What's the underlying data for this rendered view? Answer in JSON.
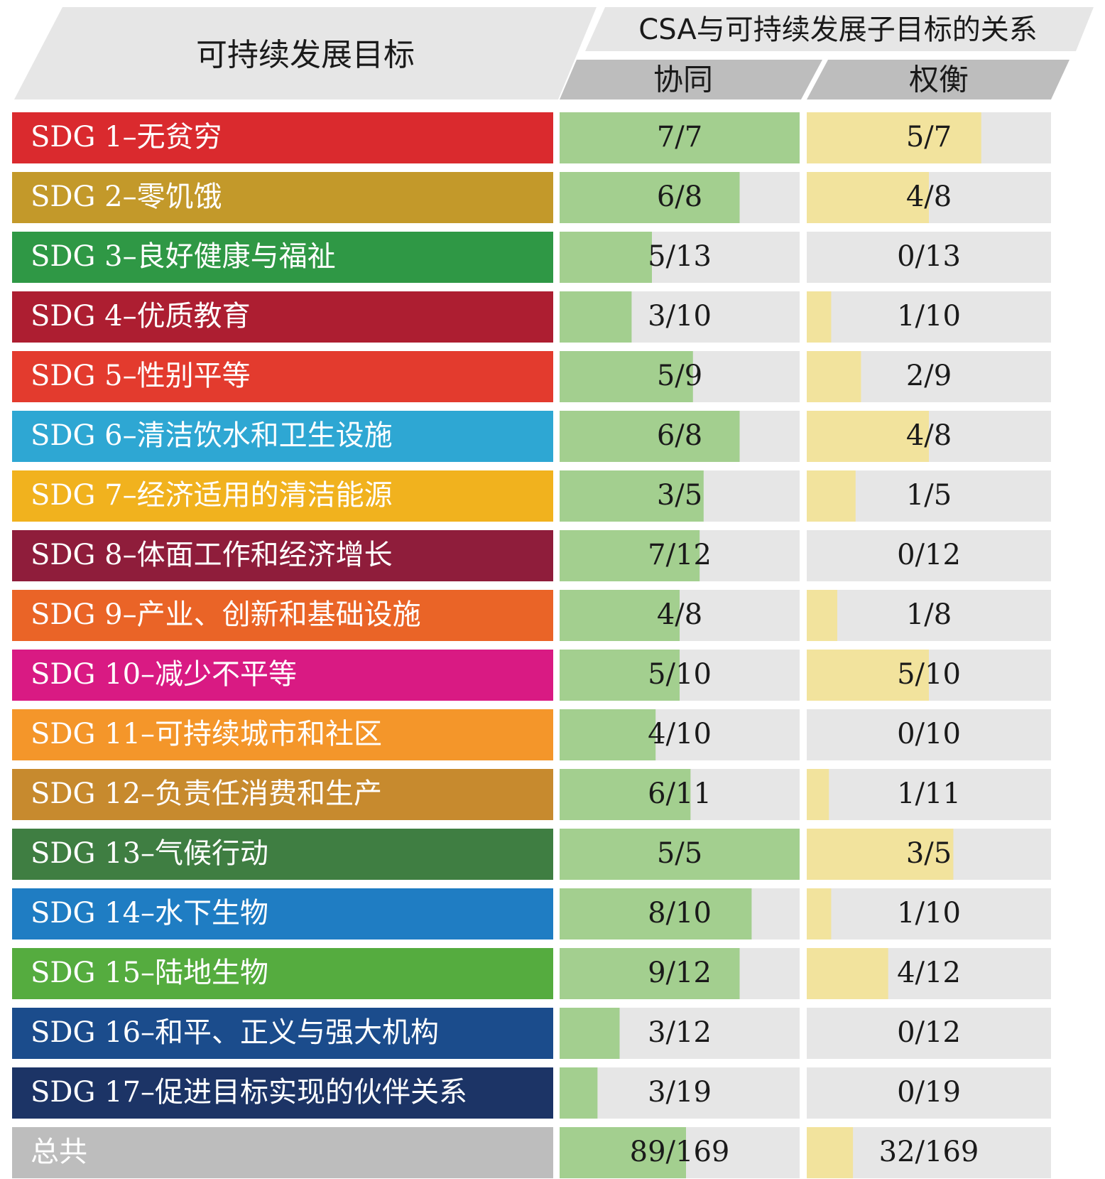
{
  "header": {
    "goal_column": "可持续发展目标",
    "relation_title": "CSA与可持续发展子目标的关系",
    "synergy_label": "协同",
    "tradeoff_label": "权衡"
  },
  "colors": {
    "synergy_bar": "#a3cf8f",
    "tradeoff_bar": "#f2e39d",
    "track": "#e6e6e6",
    "header_bg": "#e6e6e6",
    "subheader_bg": "#bdbdbd",
    "total_bg": "#bdbdbd"
  },
  "chart_data": {
    "type": "table",
    "columns": [
      "可持续发展目标",
      "协同",
      "权衡"
    ],
    "rows": [
      {
        "label": "SDG 1–无贫穷",
        "color": "#da2a2e",
        "synergy": [
          7,
          7
        ],
        "tradeoff": [
          5,
          7
        ]
      },
      {
        "label": "SDG 2–零饥饿",
        "color": "#c3992a",
        "synergy": [
          6,
          8
        ],
        "tradeoff": [
          4,
          8
        ]
      },
      {
        "label": "SDG 3–良好健康与福祉",
        "color": "#2f9845",
        "synergy": [
          5,
          13
        ],
        "tradeoff": [
          0,
          13
        ]
      },
      {
        "label": "SDG 4–优质教育",
        "color": "#ad1e31",
        "synergy": [
          3,
          10
        ],
        "tradeoff": [
          1,
          10
        ]
      },
      {
        "label": "SDG 5–性别平等",
        "color": "#e33b2e",
        "synergy": [
          5,
          9
        ],
        "tradeoff": [
          2,
          9
        ]
      },
      {
        "label": "SDG 6–清洁饮水和卫生设施",
        "color": "#2ea7d3",
        "synergy": [
          6,
          8
        ],
        "tradeoff": [
          4,
          8
        ]
      },
      {
        "label": "SDG 7–经济适用的清洁能源",
        "color": "#f1b21e",
        "synergy": [
          3,
          5
        ],
        "tradeoff": [
          1,
          5
        ]
      },
      {
        "label": "SDG 8–体面工作和经济增长",
        "color": "#8f1d3b",
        "synergy": [
          7,
          12
        ],
        "tradeoff": [
          0,
          12
        ]
      },
      {
        "label": "SDG 9–产业、创新和基础设施",
        "color": "#ea6427",
        "synergy": [
          4,
          8
        ],
        "tradeoff": [
          1,
          8
        ]
      },
      {
        "label": "SDG 10–减少不平等",
        "color": "#d91a83",
        "synergy": [
          5,
          10
        ],
        "tradeoff": [
          5,
          10
        ]
      },
      {
        "label": "SDG 11–可持续城市和社区",
        "color": "#f4962a",
        "synergy": [
          4,
          10
        ],
        "tradeoff": [
          0,
          10
        ]
      },
      {
        "label": "SDG 12–负责任消费和生产",
        "color": "#c78a2e",
        "synergy": [
          6,
          11
        ],
        "tradeoff": [
          1,
          11
        ]
      },
      {
        "label": "SDG 13–气候行动",
        "color": "#3f7e42",
        "synergy": [
          5,
          5
        ],
        "tradeoff": [
          3,
          5
        ]
      },
      {
        "label": "SDG 14–水下生物",
        "color": "#1f7dc3",
        "synergy": [
          8,
          10
        ],
        "tradeoff": [
          1,
          10
        ]
      },
      {
        "label": "SDG 15–陆地生物",
        "color": "#55ac3f",
        "synergy": [
          9,
          12
        ],
        "tradeoff": [
          4,
          12
        ]
      },
      {
        "label": "SDG 16–和平、正义与强大机构",
        "color": "#1b4c8c",
        "synergy": [
          3,
          12
        ],
        "tradeoff": [
          0,
          12
        ]
      },
      {
        "label": "SDG 17–促进目标实现的伙伴关系",
        "color": "#1c3466",
        "synergy": [
          3,
          19
        ],
        "tradeoff": [
          0,
          19
        ]
      }
    ],
    "total": {
      "label": "总共",
      "synergy": [
        89,
        169
      ],
      "tradeoff": [
        32,
        169
      ]
    }
  }
}
